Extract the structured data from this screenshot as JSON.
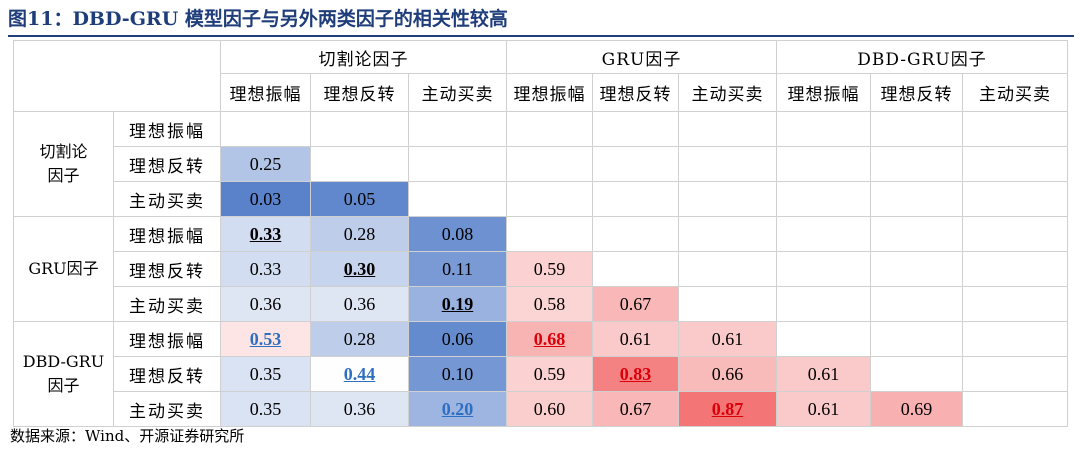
{
  "title": "图11：DBD-GRU 模型因子与另外两类因子的相关性较高",
  "col_groups": [
    "切割论因子",
    "GRU因子",
    "DBD-GRU因子"
  ],
  "sub_headers": [
    "理想振幅",
    "理想反转",
    "主动买卖",
    "理想振幅",
    "理想反转",
    "主动买卖",
    "理想振幅",
    "理想反转",
    "主动买卖"
  ],
  "row_groups": [
    "切割论\n因子",
    "GRU因子",
    "DBD-GRU\n因子"
  ],
  "row_labels": [
    "理想振幅",
    "理想反转",
    "主动买卖",
    "理想振幅",
    "理想反转",
    "主动买卖",
    "理想振幅",
    "理想反转",
    "主动买卖"
  ],
  "rows": [
    [],
    [
      "0.25"
    ],
    [
      "0.03",
      "0.05"
    ],
    [
      "0.33",
      "0.28",
      "0.08"
    ],
    [
      "0.33",
      "0.30",
      "0.11",
      "0.59"
    ],
    [
      "0.36",
      "0.36",
      "0.19",
      "0.58",
      "0.67"
    ],
    [
      "0.53",
      "0.28",
      "0.06",
      "0.68",
      "0.61",
      "0.61"
    ],
    [
      "0.35",
      "0.44",
      "0.10",
      "0.59",
      "0.83",
      "0.66",
      "0.61"
    ],
    [
      "0.35",
      "0.36",
      "0.20",
      "0.60",
      "0.67",
      "0.87",
      "0.61",
      "0.69"
    ]
  ],
  "colors": {
    "title": "#1f3d7a",
    "blue_scale_high": "#4472c4",
    "red_scale_high": "#f26b6b",
    "emphasis_blue": "#2f6fc1",
    "emphasis_red": "#d9000a"
  },
  "source": "数据来源：Wind、开源证券研究所"
}
